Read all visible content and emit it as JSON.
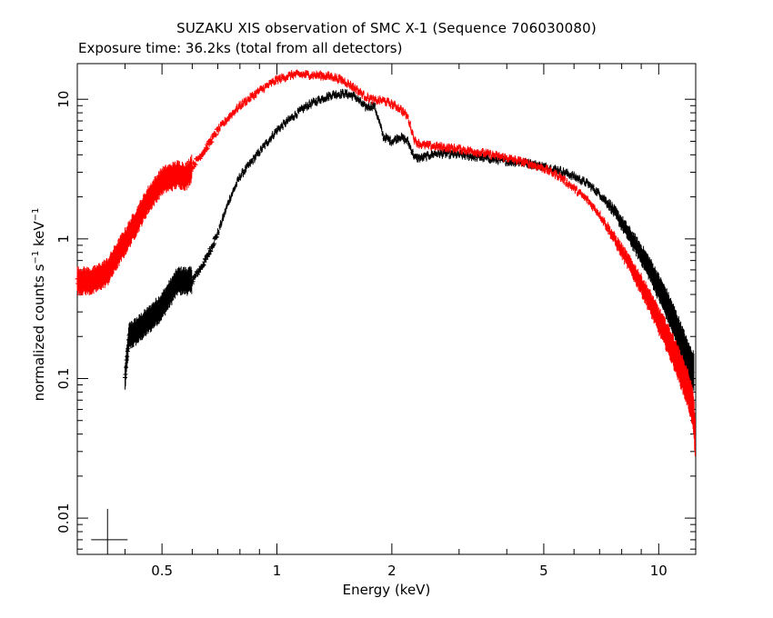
{
  "chart_data": {
    "type": "scatter",
    "title": "SUZAKU XIS observation of SMC X-1 (Sequence 706030080)",
    "subtitle": "Exposure time: 36.2ks (total from all detectors)",
    "xlabel": "Energy (keV)",
    "ylabel_text": "normalized counts s",
    "ylabel_sup1": "−1",
    "ylabel_mid": " keV",
    "ylabel_sup2": "−1",
    "x_scale": "log",
    "y_scale": "log",
    "xlim": [
      0.3,
      12.5
    ],
    "ylim": [
      0.0055,
      18
    ],
    "x_ticks": [
      {
        "value": 0.5,
        "label": "0.5"
      },
      {
        "value": 1,
        "label": "1"
      },
      {
        "value": 2,
        "label": "2"
      },
      {
        "value": 5,
        "label": "5"
      },
      {
        "value": 10,
        "label": "10"
      }
    ],
    "y_ticks": [
      {
        "value": 0.01,
        "label": "0.01"
      },
      {
        "value": 0.1,
        "label": "0.1"
      },
      {
        "value": 1,
        "label": "1"
      },
      {
        "value": 10,
        "label": "10"
      }
    ],
    "grid": false,
    "series": [
      {
        "color": "#000000",
        "points": [
          [
            0.4,
            0.1
          ],
          [
            0.41,
            0.2
          ],
          [
            0.43,
            0.22
          ],
          [
            0.46,
            0.26
          ],
          [
            0.5,
            0.33
          ],
          [
            0.55,
            0.5
          ],
          [
            0.6,
            0.5
          ],
          [
            0.65,
            0.7
          ],
          [
            0.7,
            1.1
          ],
          [
            0.75,
            1.9
          ],
          [
            0.8,
            2.8
          ],
          [
            0.9,
            4.2
          ],
          [
            1.0,
            6.0
          ],
          [
            1.1,
            7.5
          ],
          [
            1.2,
            9.0
          ],
          [
            1.3,
            10.0
          ],
          [
            1.4,
            10.8
          ],
          [
            1.5,
            11.0
          ],
          [
            1.6,
            10.5
          ],
          [
            1.7,
            8.8
          ],
          [
            1.8,
            9.0
          ],
          [
            1.85,
            7.0
          ],
          [
            1.9,
            5.4
          ],
          [
            2.0,
            5.0
          ],
          [
            2.1,
            5.4
          ],
          [
            2.2,
            5.0
          ],
          [
            2.3,
            3.8
          ],
          [
            2.4,
            3.8
          ],
          [
            2.6,
            4.1
          ],
          [
            3.0,
            4.0
          ],
          [
            3.5,
            3.8
          ],
          [
            4.0,
            3.6
          ],
          [
            4.5,
            3.5
          ],
          [
            5.0,
            3.3
          ],
          [
            5.5,
            3.1
          ],
          [
            6.0,
            2.8
          ],
          [
            6.5,
            2.5
          ],
          [
            7.0,
            2.1
          ],
          [
            7.5,
            1.7
          ],
          [
            8.0,
            1.3
          ],
          [
            8.5,
            1.0
          ],
          [
            9.0,
            0.78
          ],
          [
            9.5,
            0.6
          ],
          [
            10.0,
            0.45
          ],
          [
            10.5,
            0.34
          ],
          [
            11.0,
            0.25
          ],
          [
            11.5,
            0.18
          ],
          [
            12.0,
            0.13
          ],
          [
            12.4,
            0.11
          ]
        ]
      },
      {
        "color": "#ff0000",
        "points": [
          [
            0.3,
            0.5
          ],
          [
            0.33,
            0.5
          ],
          [
            0.36,
            0.58
          ],
          [
            0.38,
            0.75
          ],
          [
            0.4,
            0.95
          ],
          [
            0.43,
            1.35
          ],
          [
            0.46,
            1.9
          ],
          [
            0.5,
            2.6
          ],
          [
            0.55,
            2.9
          ],
          [
            0.58,
            2.8
          ],
          [
            0.6,
            3.3
          ],
          [
            0.65,
            4.4
          ],
          [
            0.7,
            6.0
          ],
          [
            0.75,
            7.5
          ],
          [
            0.8,
            9.0
          ],
          [
            0.9,
            11.5
          ],
          [
            1.0,
            13.8
          ],
          [
            1.1,
            15.0
          ],
          [
            1.2,
            15.0
          ],
          [
            1.3,
            14.8
          ],
          [
            1.4,
            14.5
          ],
          [
            1.5,
            13.5
          ],
          [
            1.6,
            12.0
          ],
          [
            1.7,
            10.5
          ],
          [
            1.8,
            9.8
          ],
          [
            1.9,
            9.8
          ],
          [
            2.0,
            9.2
          ],
          [
            2.1,
            8.6
          ],
          [
            2.2,
            7.5
          ],
          [
            2.3,
            5.0
          ],
          [
            2.4,
            4.7
          ],
          [
            2.6,
            4.6
          ],
          [
            3.0,
            4.4
          ],
          [
            3.5,
            4.1
          ],
          [
            4.0,
            3.8
          ],
          [
            4.5,
            3.5
          ],
          [
            5.0,
            3.2
          ],
          [
            5.5,
            2.8
          ],
          [
            6.0,
            2.3
          ],
          [
            6.5,
            1.9
          ],
          [
            7.0,
            1.5
          ],
          [
            7.5,
            1.1
          ],
          [
            8.0,
            0.82
          ],
          [
            8.5,
            0.62
          ],
          [
            9.0,
            0.47
          ],
          [
            9.5,
            0.35
          ],
          [
            10.0,
            0.26
          ],
          [
            10.5,
            0.2
          ],
          [
            11.0,
            0.15
          ],
          [
            11.5,
            0.11
          ],
          [
            12.0,
            0.08
          ],
          [
            12.3,
            0.06
          ],
          [
            12.5,
            0.035
          ]
        ]
      }
    ],
    "annotation": {
      "type": "error-bar-cross",
      "x": 0.36,
      "y": 0.007
    }
  }
}
